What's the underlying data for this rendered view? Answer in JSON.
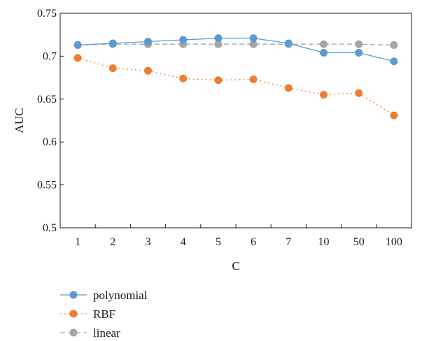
{
  "chart_data": {
    "type": "line",
    "xlabel": "C",
    "ylabel": "AUC",
    "categories": [
      "1",
      "2",
      "3",
      "4",
      "5",
      "6",
      "7",
      "10",
      "50",
      "100"
    ],
    "ylim": [
      0.5,
      0.75
    ],
    "yticks": [
      "0.5",
      "0.55",
      "0.6",
      "0.65",
      "0.7",
      "0.75"
    ],
    "grid": false,
    "legend_position": "bottom-left",
    "series": [
      {
        "name": "polynomial",
        "color": "#5b9bd5",
        "line_style": "solid",
        "values": [
          0.713,
          0.715,
          0.717,
          0.719,
          0.721,
          0.721,
          0.715,
          0.704,
          0.704,
          0.694
        ]
      },
      {
        "name": "RBF",
        "color": "#ed7d31",
        "line_style": "dotted",
        "values": [
          0.698,
          0.686,
          0.683,
          0.674,
          0.672,
          0.673,
          0.663,
          0.655,
          0.657,
          0.631
        ]
      },
      {
        "name": "linear",
        "color": "#a5a5a5",
        "line_style": "dashed",
        "values": [
          0.713,
          0.714,
          0.714,
          0.714,
          0.714,
          0.714,
          0.714,
          0.714,
          0.714,
          0.713
        ]
      }
    ]
  }
}
